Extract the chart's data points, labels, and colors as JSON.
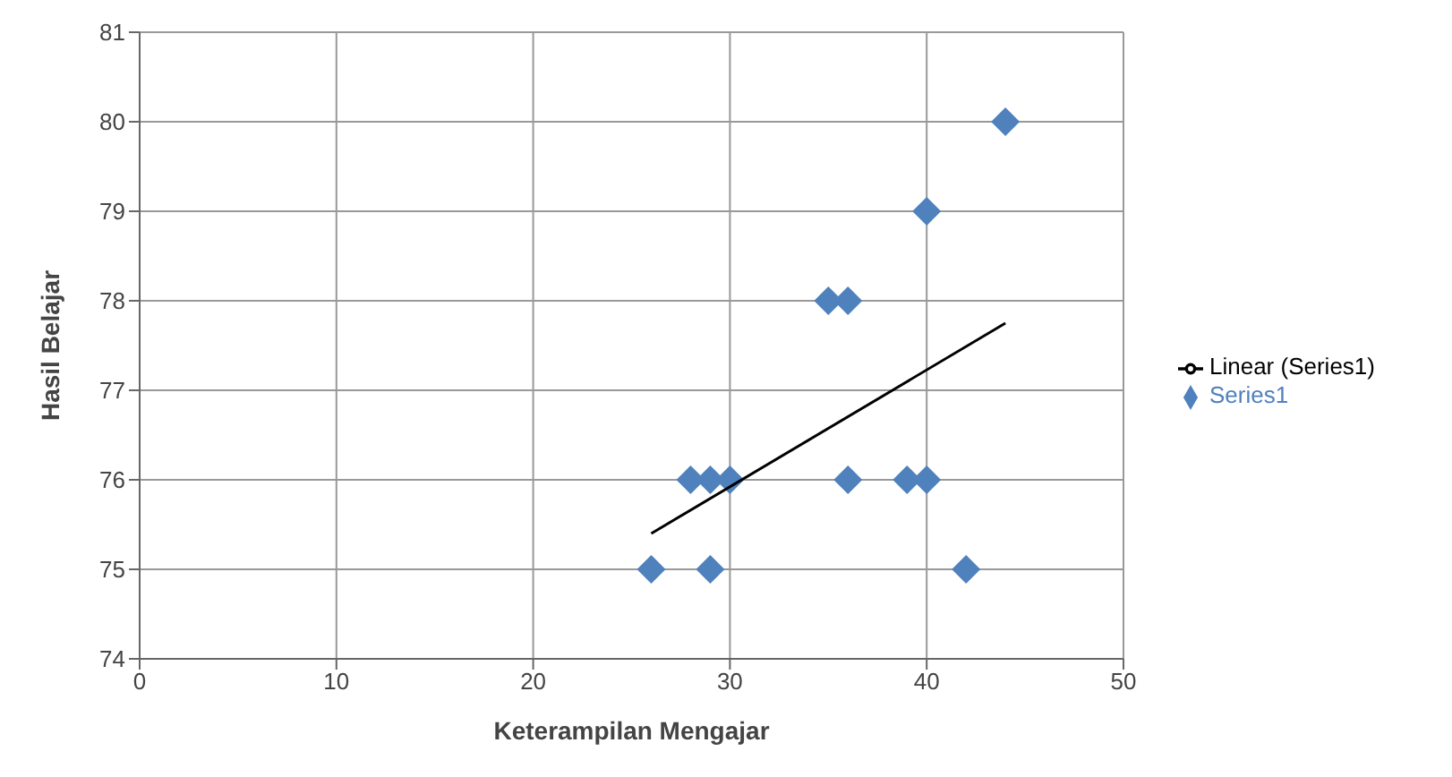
{
  "chart_data": {
    "type": "scatter",
    "xlabel": "Keterampilan Mengajar",
    "ylabel": "Hasil Belajar",
    "xlim": [
      0,
      50
    ],
    "xticks": [
      0,
      10,
      20,
      30,
      40,
      50
    ],
    "ylim": [
      74,
      81
    ],
    "yticks": [
      74,
      75,
      76,
      77,
      78,
      79,
      80,
      81
    ],
    "grid": true,
    "legend": "right",
    "marker": "diamond",
    "series": [
      {
        "name": "Series1",
        "color": "#4f81bd",
        "x": [
          26,
          29,
          28,
          29,
          30,
          35,
          36,
          36,
          39,
          40,
          40,
          42,
          44
        ],
        "values": [
          75,
          75,
          76,
          76,
          76,
          78,
          78,
          76,
          76,
          76,
          79,
          75,
          80
        ]
      },
      {
        "name": "Linear (Series1)",
        "type": "line",
        "color": "#000000",
        "marker": "none",
        "line_style": "solid",
        "x": [
          26,
          44
        ],
        "values": [
          75.4,
          77.75
        ]
      }
    ]
  }
}
